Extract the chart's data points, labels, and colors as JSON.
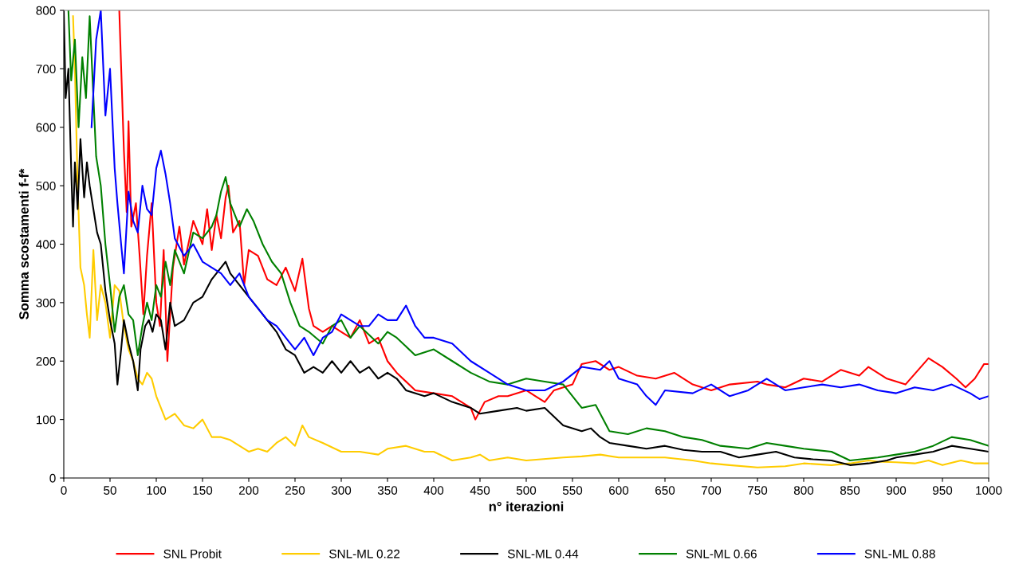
{
  "chart_data": {
    "type": "line",
    "xlabel": "n° iterazioni",
    "ylabel": "Somma scostamenti f-f*",
    "xlim": [
      0,
      1000
    ],
    "xticks": [
      0,
      50,
      100,
      150,
      200,
      250,
      300,
      350,
      400,
      450,
      500,
      550,
      600,
      650,
      700,
      750,
      800,
      850,
      900,
      950,
      1000
    ],
    "ylim": [
      0,
      800
    ],
    "yticks": [
      0,
      100,
      200,
      300,
      400,
      500,
      600,
      700,
      800
    ],
    "grid": false,
    "legend": "bottom",
    "marker": "none",
    "line_style": "solid",
    "series": [
      {
        "name": "SNL Probit",
        "color": "#ff0000",
        "x": [
          60,
          65,
          68,
          70,
          73,
          78,
          82,
          86,
          90,
          95,
          100,
          104,
          108,
          112,
          118,
          125,
          130,
          140,
          150,
          155,
          160,
          165,
          170,
          175,
          178,
          183,
          190,
          195,
          200,
          210,
          220,
          230,
          240,
          250,
          258,
          265,
          270,
          280,
          290,
          300,
          310,
          320,
          330,
          340,
          350,
          360,
          380,
          400,
          420,
          440,
          445,
          455,
          470,
          480,
          500,
          510,
          520,
          530,
          550,
          560,
          575,
          590,
          600,
          620,
          640,
          660,
          680,
          700,
          720,
          750,
          760,
          780,
          800,
          820,
          840,
          860,
          870,
          890,
          910,
          935,
          950,
          965,
          975,
          985,
          995,
          1000
        ],
        "values": [
          800,
          560,
          455,
          610,
          430,
          470,
          380,
          280,
          380,
          470,
          300,
          260,
          390,
          200,
          360,
          430,
          365,
          440,
          400,
          460,
          390,
          450,
          410,
          480,
          500,
          420,
          440,
          330,
          390,
          380,
          340,
          330,
          360,
          320,
          375,
          290,
          260,
          250,
          260,
          250,
          240,
          270,
          230,
          240,
          200,
          180,
          150,
          145,
          140,
          120,
          100,
          130,
          140,
          140,
          150,
          140,
          130,
          150,
          160,
          195,
          200,
          185,
          190,
          175,
          170,
          180,
          160,
          150,
          160,
          165,
          160,
          155,
          170,
          165,
          185,
          175,
          190,
          170,
          160,
          205,
          190,
          170,
          155,
          170,
          195,
          195
        ]
      },
      {
        "name": "SNL-ML 0.22",
        "color": "#ffcc00",
        "x": [
          10,
          12,
          15,
          18,
          22,
          25,
          28,
          32,
          36,
          40,
          45,
          50,
          55,
          60,
          65,
          70,
          75,
          80,
          85,
          90,
          95,
          100,
          105,
          110,
          120,
          130,
          140,
          150,
          160,
          170,
          180,
          190,
          200,
          210,
          220,
          230,
          240,
          250,
          258,
          265,
          280,
          300,
          320,
          340,
          350,
          370,
          390,
          400,
          420,
          440,
          450,
          460,
          480,
          500,
          540,
          560,
          580,
          600,
          620,
          650,
          680,
          700,
          720,
          750,
          780,
          800,
          830,
          850,
          870,
          880,
          900,
          920,
          935,
          950,
          970,
          985,
          1000
        ],
        "values": [
          790,
          700,
          500,
          360,
          330,
          280,
          240,
          390,
          270,
          330,
          300,
          240,
          330,
          320,
          260,
          220,
          200,
          170,
          160,
          180,
          170,
          140,
          120,
          100,
          110,
          90,
          85,
          100,
          70,
          70,
          65,
          55,
          45,
          50,
          45,
          60,
          70,
          55,
          90,
          70,
          60,
          45,
          45,
          40,
          50,
          55,
          45,
          45,
          30,
          35,
          40,
          30,
          35,
          30,
          35,
          37,
          40,
          35,
          35,
          35,
          30,
          25,
          22,
          18,
          20,
          25,
          22,
          25,
          30,
          28,
          27,
          25,
          30,
          22,
          30,
          25,
          25
        ]
      },
      {
        "name": "SNL-ML 0.44",
        "color": "#000000",
        "x": [
          0,
          2,
          5,
          8,
          10,
          12,
          15,
          18,
          22,
          25,
          28,
          32,
          36,
          40,
          45,
          50,
          55,
          58,
          62,
          65,
          70,
          75,
          80,
          83,
          88,
          92,
          96,
          100,
          105,
          110,
          115,
          120,
          130,
          140,
          150,
          160,
          170,
          175,
          180,
          190,
          200,
          210,
          220,
          230,
          240,
          250,
          260,
          270,
          280,
          290,
          300,
          310,
          320,
          330,
          340,
          350,
          360,
          370,
          390,
          400,
          420,
          440,
          450,
          470,
          490,
          500,
          520,
          540,
          560,
          570,
          580,
          590,
          610,
          630,
          650,
          670,
          690,
          710,
          730,
          750,
          770,
          790,
          810,
          830,
          850,
          870,
          890,
          900,
          920,
          940,
          960,
          980,
          1000
        ],
        "values": [
          800,
          650,
          700,
          530,
          430,
          540,
          460,
          580,
          480,
          540,
          500,
          460,
          420,
          400,
          320,
          270,
          230,
          160,
          220,
          270,
          230,
          200,
          150,
          220,
          260,
          270,
          250,
          280,
          270,
          220,
          300,
          260,
          270,
          300,
          310,
          340,
          360,
          370,
          350,
          330,
          310,
          290,
          270,
          250,
          220,
          210,
          180,
          190,
          180,
          200,
          180,
          200,
          180,
          190,
          170,
          180,
          170,
          150,
          140,
          145,
          130,
          120,
          110,
          115,
          120,
          115,
          120,
          90,
          80,
          85,
          70,
          60,
          55,
          50,
          55,
          48,
          45,
          45,
          35,
          40,
          45,
          35,
          32,
          30,
          22,
          25,
          30,
          35,
          40,
          45,
          55,
          50,
          45
        ]
      },
      {
        "name": "SNL-ML 0.66",
        "color": "#008000",
        "x": [
          5,
          8,
          12,
          16,
          20,
          24,
          28,
          35,
          40,
          45,
          50,
          55,
          60,
          65,
          70,
          75,
          80,
          85,
          90,
          95,
          100,
          105,
          110,
          115,
          120,
          130,
          140,
          150,
          160,
          165,
          170,
          175,
          180,
          190,
          198,
          205,
          215,
          225,
          235,
          245,
          255,
          265,
          280,
          290,
          300,
          310,
          320,
          340,
          350,
          360,
          380,
          400,
          420,
          440,
          460,
          480,
          500,
          520,
          540,
          560,
          575,
          590,
          610,
          630,
          650,
          670,
          690,
          710,
          740,
          760,
          780,
          800,
          830,
          850,
          880,
          900,
          920,
          940,
          960,
          980,
          1000
        ],
        "values": [
          800,
          680,
          750,
          600,
          720,
          650,
          790,
          550,
          500,
          400,
          330,
          250,
          310,
          330,
          280,
          270,
          210,
          260,
          300,
          270,
          330,
          310,
          370,
          330,
          390,
          350,
          420,
          410,
          430,
          450,
          490,
          515,
          470,
          430,
          460,
          440,
          400,
          370,
          350,
          300,
          260,
          250,
          230,
          260,
          270,
          240,
          260,
          230,
          250,
          240,
          210,
          220,
          200,
          180,
          165,
          160,
          170,
          165,
          160,
          120,
          125,
          80,
          75,
          85,
          80,
          70,
          65,
          55,
          50,
          60,
          55,
          50,
          45,
          30,
          35,
          40,
          45,
          55,
          70,
          65,
          55
        ]
      },
      {
        "name": "SNL-ML 0.88",
        "color": "#0000ff",
        "x": [
          30,
          35,
          40,
          45,
          50,
          55,
          58,
          62,
          65,
          70,
          75,
          80,
          85,
          90,
          95,
          100,
          105,
          110,
          115,
          120,
          130,
          140,
          150,
          160,
          170,
          180,
          190,
          200,
          210,
          220,
          230,
          240,
          250,
          260,
          270,
          280,
          290,
          300,
          310,
          320,
          330,
          340,
          350,
          360,
          370,
          380,
          390,
          400,
          420,
          440,
          460,
          480,
          500,
          520,
          540,
          560,
          580,
          590,
          600,
          620,
          630,
          640,
          650,
          680,
          700,
          720,
          740,
          760,
          780,
          800,
          820,
          840,
          860,
          880,
          900,
          920,
          940,
          960,
          980,
          990,
          1000
        ],
        "values": [
          600,
          750,
          800,
          620,
          700,
          530,
          470,
          400,
          350,
          490,
          440,
          420,
          500,
          460,
          450,
          530,
          560,
          520,
          470,
          410,
          380,
          400,
          370,
          360,
          350,
          330,
          350,
          310,
          290,
          270,
          260,
          240,
          220,
          240,
          210,
          240,
          250,
          280,
          270,
          260,
          260,
          280,
          270,
          270,
          295,
          260,
          240,
          240,
          230,
          200,
          180,
          160,
          150,
          150,
          165,
          190,
          185,
          200,
          170,
          160,
          140,
          125,
          150,
          145,
          160,
          140,
          150,
          170,
          150,
          155,
          160,
          155,
          160,
          150,
          145,
          155,
          150,
          160,
          145,
          135,
          140
        ]
      }
    ]
  }
}
